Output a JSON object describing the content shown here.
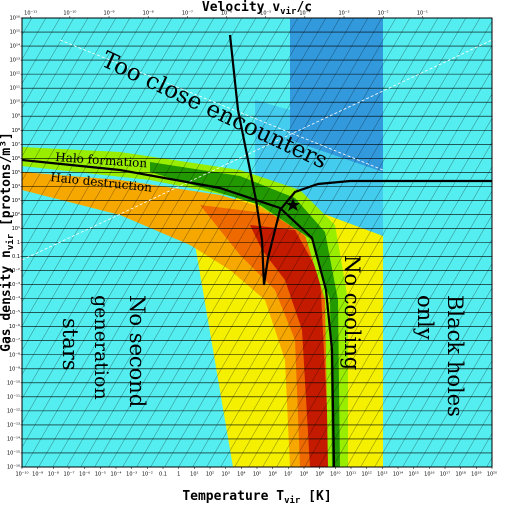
{
  "chart_data": {
    "type": "region-map",
    "x_label": [
      "Temperature T",
      "vir",
      " [K]"
    ],
    "x2_label": [
      "Velocity v",
      "vir",
      "/c"
    ],
    "y_label": [
      "Gas density n",
      "vir",
      " [protons/m³]"
    ],
    "annotations": [
      "Too close encounters",
      "Halo formation",
      "Halo destruction",
      "No second",
      "generation",
      "stars",
      "No cooling",
      "Black holes",
      "only"
    ],
    "log_x": true,
    "log_y": true,
    "grid": true,
    "xlim": [
      1e-10,
      1e+20
    ],
    "xticks": [
      {
        "value": 1e-10,
        "label": "10⁻¹⁰"
      },
      {
        "value": 1e-09,
        "label": "10⁻⁹"
      },
      {
        "value": 1e-08,
        "label": "10⁻⁸"
      },
      {
        "value": 1e-07,
        "label": "10⁻⁷"
      },
      {
        "value": 1e-06,
        "label": "10⁻⁶"
      },
      {
        "value": 1e-05,
        "label": "10⁻⁵"
      },
      {
        "value": 0.0001,
        "label": "10⁻⁴"
      },
      {
        "value": 0.001,
        "label": "10⁻³"
      },
      {
        "value": 0.01,
        "label": "10⁻²"
      },
      0.1,
      1,
      {
        "value": 10.0,
        "label": "10¹"
      },
      {
        "value": 100.0,
        "label": "10²"
      },
      {
        "value": 1000.0,
        "label": "10³"
      },
      {
        "value": 10000.0,
        "label": "10⁴"
      },
      {
        "value": 100000.0,
        "label": "10⁵"
      },
      {
        "value": 1000000.0,
        "label": "10⁶"
      },
      {
        "value": 10000000.0,
        "label": "10⁷"
      },
      {
        "value": 100000000.0,
        "label": "10⁸"
      },
      {
        "value": 1000000000.0,
        "label": "10⁹"
      },
      {
        "value": 10000000000.0,
        "label": "10¹⁰"
      },
      {
        "value": 100000000000.0,
        "label": "10¹¹"
      },
      {
        "value": 1000000000000.0,
        "label": "10¹²"
      },
      {
        "value": 10000000000000.0,
        "label": "10¹³"
      },
      {
        "value": 100000000000000.0,
        "label": "10¹⁴"
      },
      {
        "value": 1000000000000000.0,
        "label": "10¹⁵"
      },
      {
        "value": 1e+16,
        "label": "10¹⁶"
      },
      {
        "value": 1e+17,
        "label": "10¹⁷"
      },
      {
        "value": 1e+18,
        "label": "10¹⁸"
      },
      {
        "value": 1e+19,
        "label": "10¹⁹"
      },
      {
        "value": 1e+20,
        "label": "10²⁰"
      }
    ],
    "x2lim": [
      6e-12,
      6
    ],
    "x2ticks": [
      {
        "value": 1e-11,
        "label": "10⁻¹¹"
      },
      {
        "value": 1e-10,
        "label": "10⁻¹⁰"
      },
      {
        "value": 1e-09,
        "label": "10⁻⁹"
      },
      {
        "value": 1e-08,
        "label": "10⁻⁸"
      },
      {
        "value": 1e-07,
        "label": "10⁻⁷"
      },
      {
        "value": 1e-06,
        "label": "10⁻⁶"
      },
      {
        "value": 1e-05,
        "label": "10⁻⁵"
      },
      {
        "value": 0.0001,
        "label": "10⁻⁴"
      },
      {
        "value": 0.001,
        "label": "10⁻³"
      },
      {
        "value": 0.01,
        "label": "10⁻²"
      },
      {
        "value": 0.1,
        "label": "10⁻¹"
      }
    ],
    "ylim": [
      1e-16,
      1e+16
    ],
    "yticks": [
      {
        "value": 1e+16,
        "label": "10¹⁶"
      },
      {
        "value": 1000000000000000.0,
        "label": "10¹⁵"
      },
      {
        "value": 100000000000000.0,
        "label": "10¹⁴"
      },
      {
        "value": 10000000000000.0,
        "label": "10¹³"
      },
      {
        "value": 1000000000000.0,
        "label": "10¹²"
      },
      {
        "value": 100000000000.0,
        "label": "10¹¹"
      },
      {
        "value": 10000000000.0,
        "label": "10¹⁰"
      },
      {
        "value": 1000000000.0,
        "label": "10⁹"
      },
      {
        "value": 100000000.0,
        "label": "10⁸"
      },
      {
        "value": 10000000.0,
        "label": "10⁷"
      },
      {
        "value": 1000000.0,
        "label": "10⁶"
      },
      {
        "value": 100000.0,
        "label": "10⁵"
      },
      {
        "value": 10000.0,
        "label": "10⁴"
      },
      {
        "value": 1000.0,
        "label": "10³"
      },
      {
        "value": 100.0,
        "label": "10²"
      },
      {
        "value": 10.0,
        "label": "10¹"
      },
      1,
      0.1,
      {
        "value": 0.01,
        "label": "10⁻²"
      },
      {
        "value": 0.001,
        "label": "10⁻³"
      },
      {
        "value": 0.0001,
        "label": "10⁻⁴"
      },
      {
        "value": 1e-05,
        "label": "10⁻⁵"
      },
      {
        "value": 1e-06,
        "label": "10⁻⁶"
      },
      {
        "value": 1e-07,
        "label": "10⁻⁷"
      },
      {
        "value": 1e-08,
        "label": "10⁻⁸"
      },
      {
        "value": 1e-09,
        "label": "10⁻⁹"
      },
      {
        "value": 1e-10,
        "label": "10⁻¹⁰"
      },
      {
        "value": 1e-11,
        "label": "10⁻¹¹"
      },
      {
        "value": 1e-12,
        "label": "10⁻¹²"
      },
      {
        "value": 1e-13,
        "label": "10⁻¹³"
      },
      {
        "value": 1e-14,
        "label": "10⁻¹⁴"
      },
      {
        "value": 1e-15,
        "label": "10⁻¹⁵"
      },
      {
        "value": 1e-16,
        "label": "10⁻¹⁶"
      }
    ]
  }
}
